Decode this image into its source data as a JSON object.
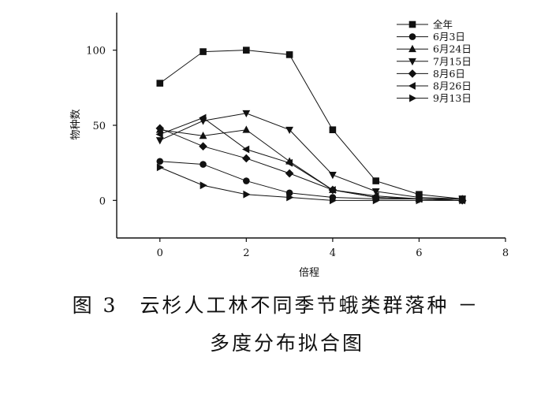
{
  "chart_data": {
    "type": "line",
    "title": "",
    "xlabel": "倍程",
    "ylabel": "物种数",
    "xlim": [
      -1,
      8
    ],
    "ylim": [
      -25,
      125
    ],
    "xticks": [
      0,
      2,
      4,
      6,
      8
    ],
    "yticks": [
      0,
      50,
      100
    ],
    "x": [
      0,
      1,
      2,
      3,
      4,
      5,
      6,
      7
    ],
    "legend_position": "top-right",
    "grid": false,
    "series": [
      {
        "name": "全年",
        "marker": "square",
        "values": [
          78,
          99,
          100,
          97,
          47,
          13,
          4,
          1
        ]
      },
      {
        "name": "6月3日",
        "marker": "circle",
        "values": [
          26,
          24,
          13,
          5,
          2,
          1,
          1,
          0
        ]
      },
      {
        "name": "6月24日",
        "marker": "triangle-up",
        "values": [
          47,
          43,
          47,
          26,
          7,
          2,
          1,
          1
        ]
      },
      {
        "name": "7月15日",
        "marker": "triangle-down",
        "values": [
          40,
          53,
          58,
          47,
          17,
          6,
          2,
          1
        ]
      },
      {
        "name": "8月6日",
        "marker": "diamond",
        "values": [
          48,
          36,
          28,
          18,
          7,
          2,
          1,
          0
        ]
      },
      {
        "name": "8月26日",
        "marker": "triangle-left",
        "values": [
          44,
          55,
          34,
          25,
          7,
          3,
          1,
          0
        ]
      },
      {
        "name": "9月13日",
        "marker": "triangle-right",
        "values": [
          22,
          10,
          4,
          2,
          0,
          0,
          0,
          0
        ]
      }
    ]
  },
  "caption": {
    "line1": "图 3　云杉人工林不同季节蛾类群落种 －",
    "line2": "多度分布拟合图"
  },
  "colors": {
    "ink": "#111111",
    "background": "#ffffff"
  }
}
